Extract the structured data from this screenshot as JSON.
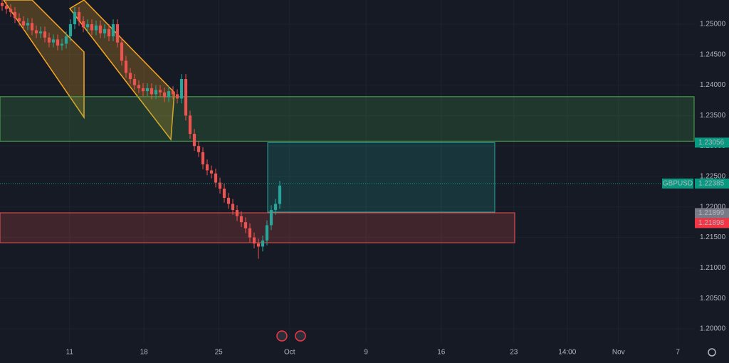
{
  "chart_data": {
    "type": "candlestick",
    "up_color": "#26a69a",
    "down_color": "#ef5350",
    "xlim": [
      0,
      162.5
    ],
    "ylim": [
      1.19766,
      1.25397
    ],
    "xticks": [
      {
        "value": 16.3,
        "label": "11"
      },
      {
        "value": 33.7,
        "label": "18"
      },
      {
        "value": 51.2,
        "label": "25"
      },
      {
        "value": 67.8,
        "label": "Oct"
      },
      {
        "value": 85.7,
        "label": "9"
      },
      {
        "value": 103.3,
        "label": "16"
      },
      {
        "value": 120.3,
        "label": "23"
      },
      {
        "value": 132.8,
        "label": "14:00"
      },
      {
        "value": 144.8,
        "label": "Nov"
      },
      {
        "value": 158.7,
        "label": "7"
      }
    ],
    "yticks": [
      {
        "value": 1.25,
        "label": "1.25000"
      },
      {
        "value": 1.245,
        "label": "1.24500"
      },
      {
        "value": 1.24,
        "label": "1.24000"
      },
      {
        "value": 1.235,
        "label": "1.23500"
      },
      {
        "value": 1.23,
        "label": "1.23000"
      },
      {
        "value": 1.225,
        "label": "1.22500"
      },
      {
        "value": 1.22,
        "label": "1.22000"
      },
      {
        "value": 1.215,
        "label": "1.21500"
      },
      {
        "value": 1.21,
        "label": "1.21000"
      },
      {
        "value": 1.205,
        "label": "1.20500"
      },
      {
        "value": 1.2,
        "label": "1.20000"
      }
    ],
    "ohlc": [
      [
        1.2535,
        1.2543,
        1.2522,
        1.253
      ],
      [
        1.253,
        1.2538,
        1.2517,
        1.2525
      ],
      [
        1.2525,
        1.2533,
        1.2512,
        1.252
      ],
      [
        1.252,
        1.2528,
        1.2502,
        1.251
      ],
      [
        1.251,
        1.2518,
        1.2497,
        1.2505
      ],
      [
        1.2505,
        1.2513,
        1.249,
        1.2498
      ],
      [
        1.2498,
        1.251,
        1.249,
        1.2502
      ],
      [
        1.2502,
        1.251,
        1.2482,
        1.249
      ],
      [
        1.249,
        1.2498,
        1.2477,
        1.2485
      ],
      [
        1.2485,
        1.2496,
        1.2477,
        1.2488
      ],
      [
        1.2488,
        1.2496,
        1.247,
        1.2478
      ],
      [
        1.2478,
        1.2486,
        1.2462,
        1.247
      ],
      [
        1.247,
        1.2483,
        1.2462,
        1.2475
      ],
      [
        1.2475,
        1.2483,
        1.2457,
        1.2465
      ],
      [
        1.2465,
        1.2476,
        1.2457,
        1.2468
      ],
      [
        1.2468,
        1.2488,
        1.246,
        1.248
      ],
      [
        1.248,
        1.2508,
        1.2472,
        1.25
      ],
      [
        1.25,
        1.2528,
        1.2492,
        1.252
      ],
      [
        1.252,
        1.2528,
        1.2497,
        1.2505
      ],
      [
        1.2505,
        1.2513,
        1.2487,
        1.2495
      ],
      [
        1.2495,
        1.2508,
        1.2487,
        1.25
      ],
      [
        1.25,
        1.2508,
        1.2482,
        1.249
      ],
      [
        1.249,
        1.2506,
        1.2482,
        1.2498
      ],
      [
        1.2498,
        1.2506,
        1.2477,
        1.2485
      ],
      [
        1.2485,
        1.25,
        1.2477,
        1.2492
      ],
      [
        1.2492,
        1.25,
        1.2472,
        1.248
      ],
      [
        1.248,
        1.2508,
        1.2472,
        1.25
      ],
      [
        1.25,
        1.2508,
        1.2462,
        1.247
      ],
      [
        1.247,
        1.2478,
        1.2432,
        1.244
      ],
      [
        1.244,
        1.2448,
        1.2412,
        1.242
      ],
      [
        1.242,
        1.2428,
        1.2402,
        1.241
      ],
      [
        1.241,
        1.2418,
        1.2392,
        1.24
      ],
      [
        1.24,
        1.2408,
        1.2387,
        1.2395
      ],
      [
        1.2395,
        1.2403,
        1.2382,
        1.239
      ],
      [
        1.239,
        1.2403,
        1.2382,
        1.2395
      ],
      [
        1.2395,
        1.2403,
        1.2377,
        1.2385
      ],
      [
        1.2385,
        1.24,
        1.2377,
        1.2392
      ],
      [
        1.2392,
        1.24,
        1.238,
        1.2388
      ],
      [
        1.2388,
        1.2396,
        1.2372,
        1.238
      ],
      [
        1.238,
        1.2398,
        1.2372,
        1.239
      ],
      [
        1.239,
        1.2398,
        1.2377,
        1.2385
      ],
      [
        1.2385,
        1.2393,
        1.237,
        1.2378
      ],
      [
        1.2378,
        1.2418,
        1.237,
        1.241
      ],
      [
        1.241,
        1.2418,
        1.2342,
        1.235
      ],
      [
        1.235,
        1.2358,
        1.2312,
        1.232
      ],
      [
        1.232,
        1.2328,
        1.2292,
        1.23
      ],
      [
        1.23,
        1.2308,
        1.2282,
        1.229
      ],
      [
        1.229,
        1.2298,
        1.2262,
        1.227
      ],
      [
        1.227,
        1.2278,
        1.2252,
        1.226
      ],
      [
        1.226,
        1.2268,
        1.2247,
        1.2255
      ],
      [
        1.2255,
        1.2263,
        1.2232,
        1.224
      ],
      [
        1.224,
        1.2248,
        1.2222,
        1.223
      ],
      [
        1.223,
        1.2238,
        1.2207,
        1.2215
      ],
      [
        1.2215,
        1.2223,
        1.2197,
        1.2205
      ],
      [
        1.2205,
        1.2213,
        1.2187,
        1.2195
      ],
      [
        1.2195,
        1.2203,
        1.2177,
        1.2185
      ],
      [
        1.2185,
        1.2193,
        1.2167,
        1.2175
      ],
      [
        1.2175,
        1.2183,
        1.2157,
        1.2165
      ],
      [
        1.2165,
        1.2173,
        1.2142,
        1.215
      ],
      [
        1.215,
        1.2158,
        1.2132,
        1.214
      ],
      [
        1.214,
        1.2148,
        1.2115,
        1.2135
      ],
      [
        1.2135,
        1.2153,
        1.2127,
        1.2145
      ],
      [
        1.2145,
        1.2178,
        1.2137,
        1.217
      ],
      [
        1.217,
        1.2203,
        1.2162,
        1.2195
      ],
      [
        1.2195,
        1.2213,
        1.2187,
        1.2205
      ],
      [
        1.2205,
        1.2243,
        1.2197,
        1.2235
      ]
    ],
    "zones": [
      {
        "x": [
          0,
          162.5
        ],
        "y": [
          1.2381,
          1.2308
        ],
        "color": "#4caf50"
      },
      {
        "x": [
          62.67,
          115.83
        ],
        "y": [
          1.23056,
          1.21916
        ],
        "color": "#26a69a"
      },
      {
        "x": [
          0,
          120.5
        ],
        "y": [
          1.21904,
          1.21413
        ],
        "color": "#ef5350"
      }
    ],
    "channels": [
      {
        "x": [
          0.83,
          7.5,
          19.67,
          19.67
        ],
        "y": [
          1.25397,
          1.25397,
          1.24544,
          1.2347
        ],
        "color": "#f5a623"
      },
      {
        "x": [
          16.33,
          19.67,
          40.83,
          40
        ],
        "y": [
          1.25257,
          1.25397,
          1.23879,
          1.23107
        ],
        "color": "#f5a623"
      }
    ],
    "symbol": "GBPUSD",
    "price_tags": [
      {
        "value": 1.23056,
        "label": "1.23056",
        "color": "#089981"
      },
      {
        "value": 1.22385,
        "label": "1.22385",
        "color": "#089981"
      },
      {
        "value": 1.21899,
        "label": "1.21899",
        "color": "#787b86"
      },
      {
        "value": 1.21898,
        "label": "1.21898",
        "color": "#f23645"
      }
    ]
  }
}
